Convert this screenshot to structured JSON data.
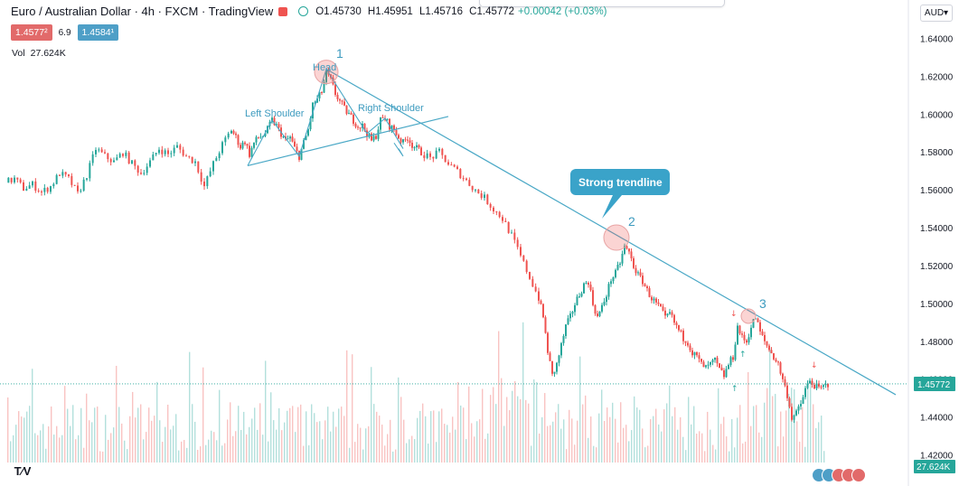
{
  "header": {
    "symbol_title": "Euro / Australian Dollar · 4h · FXCM · TradingView",
    "ohlc": {
      "open": "O1.45730",
      "high": "H1.45951",
      "low": "L1.45716",
      "close": "C1.45772",
      "change": "+0.00042 (+0.03%)"
    },
    "bid": "1.4577²",
    "spread": "6.9",
    "ask": "1.4584¹",
    "volume_label": "Vol",
    "volume_value": "27.624K",
    "currency_button": "AUD▾"
  },
  "colors": {
    "up": "#26a69a",
    "down": "#ef5350",
    "trendline": "#4aa8c6",
    "annotation_text": "#3d9bbf",
    "circle_fill": "rgba(239,83,80,0.25)"
  },
  "price_axis": {
    "ticks": [
      "1.64000",
      "1.62000",
      "1.60000",
      "1.58000",
      "1.56000",
      "1.54000",
      "1.52000",
      "1.50000",
      "1.48000",
      "1.46000",
      "1.44000",
      "1.42000"
    ],
    "last_price_label": "1.45772",
    "volume_label": "27.624K"
  },
  "annotations": {
    "head_label": "Head",
    "left_shoulder": "Left Shoulder",
    "right_shoulder": "Right Shoulder",
    "callout": "Strong trendline",
    "touch_numbers": [
      "1",
      "2",
      "3"
    ]
  },
  "chart_data": {
    "type": "candlestick",
    "title": "Euro / Australian Dollar · 4h · FXCM · TradingView",
    "ylim": [
      1.415,
      1.65
    ],
    "last_price": 1.45772,
    "series": [
      {
        "name": "EUR/AUD",
        "points": [
          [
            0,
            1.564
          ],
          [
            10,
            1.566
          ],
          [
            20,
            1.561
          ],
          [
            30,
            1.563
          ],
          [
            40,
            1.559
          ],
          [
            50,
            1.562
          ],
          [
            60,
            1.569
          ],
          [
            70,
            1.566
          ],
          [
            80,
            1.558
          ],
          [
            90,
            1.568
          ],
          [
            100,
            1.582
          ],
          [
            110,
            1.578
          ],
          [
            120,
            1.575
          ],
          [
            130,
            1.58
          ],
          [
            140,
            1.574
          ],
          [
            150,
            1.569
          ],
          [
            160,
            1.575
          ],
          [
            170,
            1.582
          ],
          [
            180,
            1.579
          ],
          [
            190,
            1.583
          ],
          [
            200,
            1.578
          ],
          [
            210,
            1.575
          ],
          [
            220,
            1.562
          ],
          [
            230,
            1.574
          ],
          [
            240,
            1.584
          ],
          [
            250,
            1.592
          ],
          [
            255,
            1.588
          ],
          [
            260,
            1.583
          ],
          [
            265,
            1.586
          ],
          [
            270,
            1.579
          ],
          [
            275,
            1.585
          ],
          [
            280,
            1.588
          ],
          [
            285,
            1.589
          ],
          [
            290,
            1.592
          ],
          [
            295,
            1.597
          ],
          [
            300,
            1.594
          ],
          [
            305,
            1.59
          ],
          [
            310,
            1.586
          ],
          [
            315,
            1.588
          ],
          [
            320,
            1.582
          ],
          [
            325,
            1.578
          ],
          [
            330,
            1.585
          ],
          [
            335,
            1.592
          ],
          [
            340,
            1.605
          ],
          [
            345,
            1.608
          ],
          [
            350,
            1.612
          ],
          [
            355,
            1.622
          ],
          [
            360,
            1.618
          ],
          [
            365,
            1.611
          ],
          [
            370,
            1.607
          ],
          [
            375,
            1.603
          ],
          [
            380,
            1.6
          ],
          [
            385,
            1.597
          ],
          [
            390,
            1.594
          ],
          [
            395,
            1.594
          ],
          [
            400,
            1.59
          ],
          [
            405,
            1.586
          ],
          [
            410,
            1.589
          ],
          [
            415,
            1.597
          ],
          [
            420,
            1.598
          ],
          [
            425,
            1.594
          ],
          [
            430,
            1.592
          ],
          [
            435,
            1.588
          ],
          [
            440,
            1.585
          ],
          [
            445,
            1.588
          ],
          [
            450,
            1.584
          ],
          [
            455,
            1.582
          ],
          [
            460,
            1.58
          ],
          [
            470,
            1.577
          ],
          [
            480,
            1.58
          ],
          [
            490,
            1.574
          ],
          [
            500,
            1.57
          ],
          [
            510,
            1.565
          ],
          [
            520,
            1.56
          ],
          [
            530,
            1.556
          ],
          [
            540,
            1.55
          ],
          [
            550,
            1.545
          ],
          [
            560,
            1.536
          ],
          [
            570,
            1.525
          ],
          [
            580,
            1.514
          ],
          [
            590,
            1.503
          ],
          [
            595,
            1.493
          ],
          [
            600,
            1.475
          ],
          [
            605,
            1.462
          ],
          [
            610,
            1.468
          ],
          [
            615,
            1.478
          ],
          [
            620,
            1.488
          ],
          [
            625,
            1.493
          ],
          [
            630,
            1.5
          ],
          [
            635,
            1.505
          ],
          [
            640,
            1.51
          ],
          [
            645,
            1.512
          ],
          [
            650,
            1.5
          ],
          [
            655,
            1.493
          ],
          [
            660,
            1.498
          ],
          [
            665,
            1.505
          ],
          [
            670,
            1.513
          ],
          [
            675,
            1.516
          ],
          [
            680,
            1.522
          ],
          [
            685,
            1.53
          ],
          [
            690,
            1.527
          ],
          [
            695,
            1.52
          ],
          [
            700,
            1.515
          ],
          [
            705,
            1.512
          ],
          [
            710,
            1.507
          ],
          [
            715,
            1.503
          ],
          [
            720,
            1.5
          ],
          [
            725,
            1.497
          ],
          [
            730,
            1.492
          ],
          [
            735,
            1.495
          ],
          [
            740,
            1.49
          ],
          [
            745,
            1.486
          ],
          [
            750,
            1.482
          ],
          [
            755,
            1.48
          ],
          [
            760,
            1.474
          ],
          [
            765,
            1.472
          ],
          [
            770,
            1.468
          ],
          [
            775,
            1.466
          ],
          [
            780,
            1.468
          ],
          [
            785,
            1.47
          ],
          [
            790,
            1.465
          ],
          [
            795,
            1.462
          ],
          [
            800,
            1.468
          ],
          [
            805,
            1.472
          ],
          [
            810,
            1.488
          ],
          [
            815,
            1.482
          ],
          [
            820,
            1.48
          ],
          [
            825,
            1.488
          ],
          [
            830,
            1.493
          ],
          [
            835,
            1.485
          ],
          [
            840,
            1.48
          ],
          [
            845,
            1.476
          ],
          [
            850,
            1.472
          ],
          [
            855,
            1.468
          ],
          [
            860,
            1.46
          ],
          [
            865,
            1.452
          ],
          [
            870,
            1.44
          ],
          [
            875,
            1.442
          ],
          [
            880,
            1.447
          ],
          [
            885,
            1.455
          ],
          [
            890,
            1.459
          ],
          [
            895,
            1.457
          ],
          [
            900,
            1.455
          ],
          [
            905,
            1.456
          ],
          [
            910,
            1.4577
          ]
        ]
      }
    ],
    "trendlines": [
      {
        "name": "main",
        "points": [
          [
            355,
            1.624
          ],
          [
            985,
            1.452
          ]
        ]
      },
      {
        "name": "neckline",
        "points": [
          [
            268,
            1.573
          ],
          [
            490,
            1.599
          ]
        ]
      }
    ]
  }
}
